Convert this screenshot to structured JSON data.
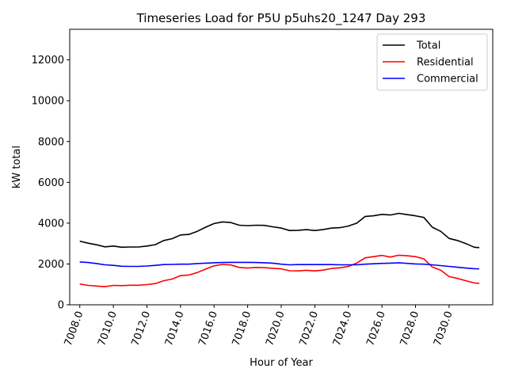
{
  "chart_data": {
    "type": "line",
    "title": "Timeseries Load for P5U p5uhs20_1247  Day 293",
    "xlabel": "Hour of Year",
    "ylabel": "kW total",
    "xlim": [
      7007.4,
      7032.6
    ],
    "ylim": [
      0,
      13500
    ],
    "xticks": [
      7008,
      7010,
      7012,
      7014,
      7016,
      7018,
      7020,
      7022,
      7024,
      7026,
      7028,
      7030
    ],
    "xtick_labels": [
      "7008.0",
      "7010.0",
      "7012.0",
      "7014.0",
      "7016.0",
      "7018.0",
      "7020.0",
      "7022.0",
      "7024.0",
      "7026.0",
      "7028.0",
      "7030.0"
    ],
    "yticks": [
      0,
      2000,
      4000,
      6000,
      8000,
      10000,
      12000
    ],
    "ytick_labels": [
      "0",
      "2000",
      "4000",
      "6000",
      "8000",
      "10000",
      "12000"
    ],
    "legend_position": "top-right",
    "series": [
      {
        "name": "Total",
        "color": "#000000",
        "points": [
          [
            7008.0,
            3120
          ],
          [
            7008.5,
            3020
          ],
          [
            7009.0,
            2940
          ],
          [
            7009.5,
            2840
          ],
          [
            7010.0,
            2880
          ],
          [
            7010.5,
            2820
          ],
          [
            7011.0,
            2830
          ],
          [
            7011.5,
            2830
          ],
          [
            7012.0,
            2880
          ],
          [
            7012.5,
            2950
          ],
          [
            7013.0,
            3150
          ],
          [
            7013.5,
            3240
          ],
          [
            7014.0,
            3420
          ],
          [
            7014.5,
            3450
          ],
          [
            7015.0,
            3600
          ],
          [
            7015.5,
            3800
          ],
          [
            7016.0,
            3980
          ],
          [
            7016.5,
            4060
          ],
          [
            7017.0,
            4030
          ],
          [
            7017.5,
            3900
          ],
          [
            7018.0,
            3880
          ],
          [
            7018.5,
            3900
          ],
          [
            7019.0,
            3890
          ],
          [
            7019.5,
            3820
          ],
          [
            7020.0,
            3760
          ],
          [
            7020.5,
            3640
          ],
          [
            7021.0,
            3650
          ],
          [
            7021.5,
            3680
          ],
          [
            7022.0,
            3640
          ],
          [
            7022.5,
            3690
          ],
          [
            7023.0,
            3760
          ],
          [
            7023.5,
            3780
          ],
          [
            7024.0,
            3860
          ],
          [
            7024.5,
            4000
          ],
          [
            7025.0,
            4330
          ],
          [
            7025.5,
            4360
          ],
          [
            7026.0,
            4430
          ],
          [
            7026.5,
            4400
          ],
          [
            7027.0,
            4480
          ],
          [
            7027.5,
            4420
          ],
          [
            7028.0,
            4360
          ],
          [
            7028.5,
            4280
          ],
          [
            7029.0,
            3800
          ],
          [
            7029.5,
            3600
          ],
          [
            7030.0,
            3250
          ],
          [
            7030.5,
            3150
          ],
          [
            7031.0,
            3000
          ],
          [
            7031.5,
            2820
          ],
          [
            7031.8,
            2800
          ]
        ]
      },
      {
        "name": "Residential",
        "color": "#ff0000",
        "points": [
          [
            7008.0,
            1020
          ],
          [
            7008.5,
            950
          ],
          [
            7009.0,
            920
          ],
          [
            7009.5,
            890
          ],
          [
            7010.0,
            950
          ],
          [
            7010.5,
            940
          ],
          [
            7011.0,
            960
          ],
          [
            7011.5,
            960
          ],
          [
            7012.0,
            990
          ],
          [
            7012.5,
            1040
          ],
          [
            7013.0,
            1180
          ],
          [
            7013.5,
            1260
          ],
          [
            7014.0,
            1430
          ],
          [
            7014.5,
            1460
          ],
          [
            7015.0,
            1580
          ],
          [
            7015.5,
            1750
          ],
          [
            7016.0,
            1910
          ],
          [
            7016.5,
            1980
          ],
          [
            7017.0,
            1950
          ],
          [
            7017.5,
            1830
          ],
          [
            7018.0,
            1800
          ],
          [
            7018.5,
            1830
          ],
          [
            7019.0,
            1820
          ],
          [
            7019.5,
            1790
          ],
          [
            7020.0,
            1760
          ],
          [
            7020.5,
            1670
          ],
          [
            7021.0,
            1660
          ],
          [
            7021.5,
            1690
          ],
          [
            7022.0,
            1660
          ],
          [
            7022.5,
            1700
          ],
          [
            7023.0,
            1780
          ],
          [
            7023.5,
            1810
          ],
          [
            7024.0,
            1880
          ],
          [
            7024.5,
            2050
          ],
          [
            7025.0,
            2300
          ],
          [
            7025.5,
            2360
          ],
          [
            7026.0,
            2420
          ],
          [
            7026.5,
            2340
          ],
          [
            7027.0,
            2430
          ],
          [
            7027.5,
            2400
          ],
          [
            7028.0,
            2360
          ],
          [
            7028.5,
            2250
          ],
          [
            7029.0,
            1850
          ],
          [
            7029.5,
            1700
          ],
          [
            7030.0,
            1380
          ],
          [
            7030.5,
            1290
          ],
          [
            7031.0,
            1180
          ],
          [
            7031.5,
            1070
          ],
          [
            7031.8,
            1050
          ]
        ]
      },
      {
        "name": "Commercial",
        "color": "#0000ff",
        "points": [
          [
            7008.0,
            2100
          ],
          [
            7008.5,
            2070
          ],
          [
            7009.0,
            2020
          ],
          [
            7009.5,
            1960
          ],
          [
            7010.0,
            1930
          ],
          [
            7010.5,
            1890
          ],
          [
            7011.0,
            1880
          ],
          [
            7011.5,
            1880
          ],
          [
            7012.0,
            1900
          ],
          [
            7012.5,
            1930
          ],
          [
            7013.0,
            1970
          ],
          [
            7013.5,
            1980
          ],
          [
            7014.0,
            1990
          ],
          [
            7014.5,
            1990
          ],
          [
            7015.0,
            2020
          ],
          [
            7015.5,
            2040
          ],
          [
            7016.0,
            2060
          ],
          [
            7016.5,
            2070
          ],
          [
            7017.0,
            2080
          ],
          [
            7017.5,
            2080
          ],
          [
            7018.0,
            2080
          ],
          [
            7018.5,
            2070
          ],
          [
            7019.0,
            2060
          ],
          [
            7019.5,
            2040
          ],
          [
            7020.0,
            1990
          ],
          [
            7020.5,
            1960
          ],
          [
            7021.0,
            1970
          ],
          [
            7021.5,
            1970
          ],
          [
            7022.0,
            1970
          ],
          [
            7022.5,
            1970
          ],
          [
            7023.0,
            1970
          ],
          [
            7023.5,
            1960
          ],
          [
            7024.0,
            1960
          ],
          [
            7024.5,
            1960
          ],
          [
            7025.0,
            1990
          ],
          [
            7025.5,
            2010
          ],
          [
            7026.0,
            2030
          ],
          [
            7026.5,
            2040
          ],
          [
            7027.0,
            2060
          ],
          [
            7027.5,
            2030
          ],
          [
            7028.0,
            2000
          ],
          [
            7028.5,
            1990
          ],
          [
            7029.0,
            1960
          ],
          [
            7029.5,
            1920
          ],
          [
            7030.0,
            1880
          ],
          [
            7030.5,
            1840
          ],
          [
            7031.0,
            1800
          ],
          [
            7031.5,
            1770
          ],
          [
            7031.8,
            1760
          ]
        ]
      }
    ]
  }
}
